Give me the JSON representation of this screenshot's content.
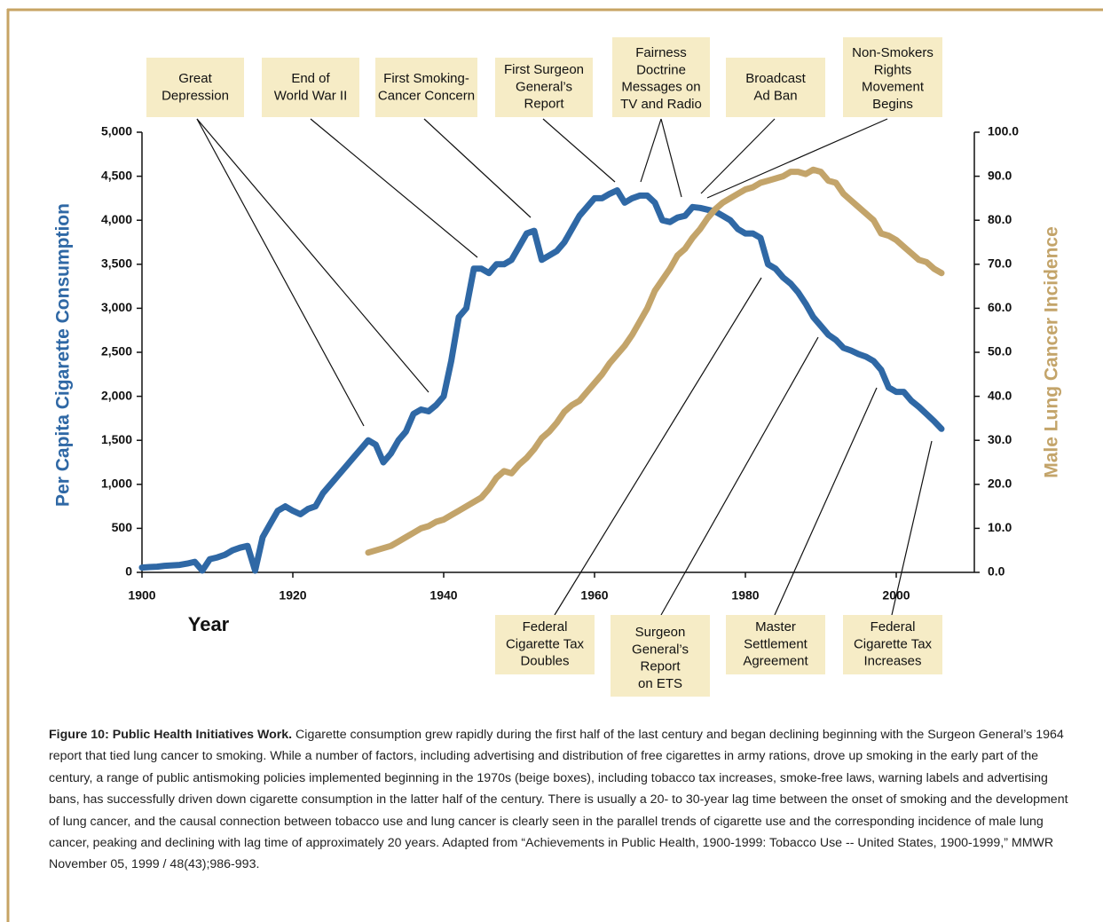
{
  "chart_data": {
    "type": "line",
    "x_label": "Year",
    "y_label": "Per Capita Cigarette Consumption",
    "y2_label": "Male Lung Cancer Incidence",
    "x": [
      1900,
      1901,
      1902,
      1903,
      1904,
      1905,
      1906,
      1907,
      1908,
      1909,
      1910,
      1911,
      1912,
      1913,
      1914,
      1915,
      1916,
      1917,
      1918,
      1919,
      1920,
      1921,
      1922,
      1923,
      1924,
      1925,
      1926,
      1927,
      1928,
      1929,
      1930,
      1931,
      1932,
      1933,
      1934,
      1935,
      1936,
      1937,
      1938,
      1939,
      1940,
      1941,
      1942,
      1943,
      1944,
      1945,
      1946,
      1947,
      1948,
      1949,
      1950,
      1951,
      1952,
      1953,
      1954,
      1955,
      1956,
      1957,
      1958,
      1959,
      1960,
      1961,
      1962,
      1963,
      1964,
      1965,
      1966,
      1967,
      1968,
      1969,
      1970,
      1971,
      1972,
      1973,
      1974,
      1975,
      1976,
      1977,
      1978,
      1979,
      1980,
      1981,
      1982,
      1983,
      1984,
      1985,
      1986,
      1987,
      1988,
      1989,
      1990,
      1991,
      1992,
      1993,
      1994,
      1995,
      1996,
      1997,
      1998,
      1999,
      2000,
      2001,
      2002,
      2003,
      2004,
      2005,
      2006
    ],
    "series": [
      {
        "name": "Per Capita Cigarette Consumption",
        "color": "#2f68a5",
        "axis": "y",
        "values": [
          54,
          60,
          65,
          75,
          80,
          85,
          100,
          120,
          20,
          150,
          170,
          200,
          250,
          280,
          300,
          20,
          400,
          550,
          700,
          750,
          700,
          660,
          720,
          750,
          900,
          1000,
          1100,
          1200,
          1300,
          1400,
          1500,
          1450,
          1250,
          1350,
          1500,
          1600,
          1800,
          1850,
          1830,
          1900,
          2000,
          2400,
          2900,
          3000,
          3450,
          3450,
          3400,
          3500,
          3500,
          3550,
          3700,
          3850,
          3880,
          3550,
          3600,
          3650,
          3750,
          3900,
          4050,
          4150,
          4250,
          4250,
          4300,
          4340,
          4200,
          4250,
          4280,
          4280,
          4200,
          4000,
          3980,
          4030,
          4050,
          4150,
          4140,
          4120,
          4100,
          4050,
          4000,
          3900,
          3850,
          3850,
          3800,
          3500,
          3450,
          3350,
          3280,
          3180,
          3050,
          2900,
          2800,
          2700,
          2640,
          2550,
          2520,
          2480,
          2450,
          2400,
          2300,
          2100,
          2050,
          2050,
          1950,
          1880,
          1800,
          1720,
          1630
        ]
      },
      {
        "name": "Male Lung Cancer Incidence",
        "color": "#c3a46a",
        "axis": "y2",
        "values": [
          null,
          null,
          null,
          null,
          null,
          null,
          null,
          null,
          null,
          null,
          null,
          null,
          null,
          null,
          null,
          null,
          null,
          null,
          null,
          null,
          null,
          null,
          null,
          null,
          null,
          null,
          null,
          null,
          null,
          null,
          4.5,
          5,
          5.5,
          6,
          7,
          8,
          9,
          10,
          10.5,
          11.5,
          12,
          13,
          14,
          15,
          16,
          17,
          19,
          21.5,
          23,
          22.5,
          24.5,
          26,
          28,
          30.5,
          32,
          34,
          36.5,
          38,
          39,
          41,
          43,
          45,
          47.5,
          49.5,
          51.5,
          54,
          57,
          60,
          64,
          66.5,
          69,
          72,
          73.5,
          76,
          78,
          80.5,
          82.5,
          84,
          85,
          86,
          87,
          87.5,
          88.5,
          89,
          89.5,
          90,
          91,
          91,
          90.5,
          91.5,
          91,
          89,
          88.5,
          86,
          84.5,
          83,
          81.5,
          80,
          77,
          76.5,
          75.5,
          74,
          72.5,
          71,
          70.5,
          69,
          68
        ]
      }
    ],
    "xlim": [
      1900,
      2010
    ],
    "xticks": [
      1900,
      1920,
      1940,
      1960,
      1980,
      2000
    ],
    "ylim": [
      0,
      5000
    ],
    "yticks": [
      0,
      {
        "value": 500,
        "label": "500"
      },
      {
        "value": 1000,
        "label": "1,000"
      },
      {
        "value": 1500,
        "label": "1,500"
      },
      {
        "value": 2000,
        "label": "2,000"
      },
      {
        "value": 2500,
        "label": "2,500"
      },
      {
        "value": 3000,
        "label": "3,000"
      },
      {
        "value": 3500,
        "label": "3,500"
      },
      {
        "value": 4000,
        "label": "4,000"
      },
      {
        "value": 4500,
        "label": "4,500"
      },
      {
        "value": 5000,
        "label": "5,000"
      }
    ],
    "y2lim": [
      0,
      100
    ],
    "y2ticks": [
      {
        "value": 0,
        "label": "0.0"
      },
      {
        "value": 10,
        "label": "10.0"
      },
      {
        "value": 20,
        "label": "20.0"
      },
      {
        "value": 30,
        "label": "30.0"
      },
      {
        "value": 40,
        "label": "40.0"
      },
      {
        "value": 50,
        "label": "50.0"
      },
      {
        "value": 60,
        "label": "60.0"
      },
      {
        "value": 70,
        "label": "70.0"
      },
      {
        "value": 80,
        "label": "80.0"
      },
      {
        "value": 90,
        "label": "90.0"
      },
      {
        "value": 100,
        "label": "100.0"
      }
    ],
    "annotations": [
      {
        "lines": [
          "Great",
          "Depression"
        ]
      },
      {
        "lines": [
          "End of",
          "World War II"
        ]
      },
      {
        "lines": [
          "First Smoking-",
          "Cancer Concern"
        ]
      },
      {
        "lines": [
          "First Surgeon",
          "General’s",
          "Report"
        ]
      },
      {
        "lines": [
          "Fairness",
          "Doctrine",
          "Messages on",
          "TV and Radio"
        ]
      },
      {
        "lines": [
          "Broadcast",
          "Ad Ban"
        ]
      },
      {
        "lines": [
          "Non-Smokers",
          "Rights",
          "Movement",
          "Begins"
        ]
      },
      {
        "lines": [
          "Federal",
          "Cigarette Tax",
          "Doubles"
        ]
      },
      {
        "lines": [
          "Surgeon",
          "General’s",
          "Report",
          "on ETS"
        ]
      },
      {
        "lines": [
          "Master",
          "Settlement",
          "Agreement"
        ]
      },
      {
        "lines": [
          "Federal",
          "Cigarette Tax",
          "Increases"
        ]
      }
    ]
  },
  "caption": {
    "lead": "Figure 10: Public Health Initiatives Work.",
    "text": "Cigarette consumption grew rapidly during the first half of the last century and began declining beginning with the Surgeon General’s 1964 report that tied lung cancer to smoking. While a number of factors, including advertising and distribution of free cigarettes in army rations, drove up smoking in the early part of the century, a range of public antismoking policies implemented beginning in the 1970s (beige boxes), including tobacco tax increases, smoke-free laws, warning labels and advertising bans, has successfully driven down cigarette consumption in the latter half of the century. There is usually a 20- to 30-year lag time between the onset of smoking and the development of lung cancer, and the causal connection between tobacco use and lung cancer is clearly seen in the parallel trends of cigarette use and the corresponding incidence of male lung cancer, peaking and declining with lag time of approximately 20 years. Adapted from “Achievements in Public Health, 1900-1999: Tobacco Use -- United States, 1900-1999,” MMWR November 05, 1999 / 48(43);986-993."
  }
}
